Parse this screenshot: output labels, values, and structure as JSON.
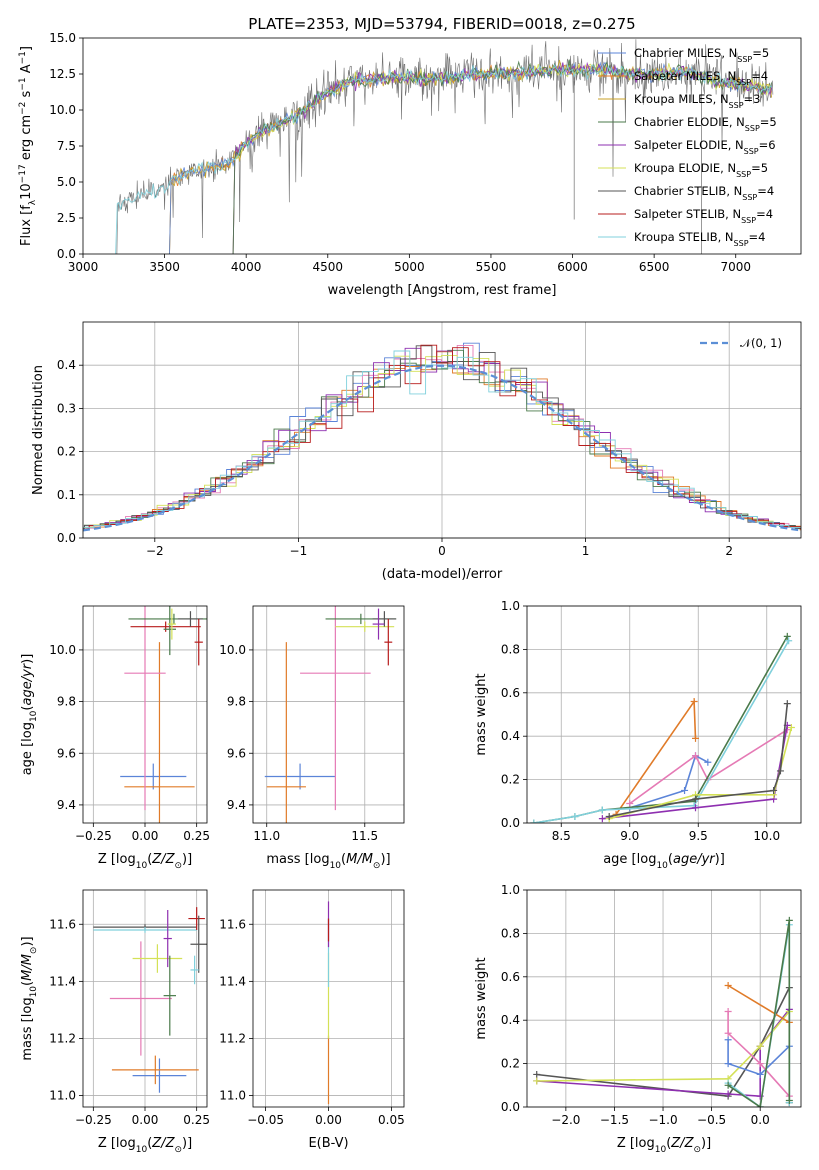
{
  "palette": {
    "Chabrier MILES": "#5b84d8",
    "Salpeter MILES": "#e07b29",
    "Kroupa MILES": "#c9a227",
    "Chabrier ELODIE": "#4a7a4a",
    "Salpeter ELODIE": "#8e2fb0",
    "Kroupa ELODIE": "#d4e157",
    "Chabrier STELIB": "#555555",
    "Salpeter STELIB": "#b71c1c",
    "Kroupa STELIB": "#80d0dc",
    "pink": "#e57ab5",
    "normal": "#5b8fd6"
  },
  "chart_data": [
    {
      "id": "spectrum",
      "type": "line",
      "title": "PLATE=2353, MJD=53794, FIBERID=0018, z=0.275",
      "xlabel": "wavelength [Angstrom, rest frame]",
      "ylabel_parts": [
        "Flux [f",
        "λ",
        "10",
        "−17",
        " erg cm",
        "−2",
        " s",
        "−1",
        " A",
        "−1",
        "]"
      ],
      "xlim": [
        3000,
        7400
      ],
      "ylim": [
        0,
        15
      ],
      "xticks": [
        3000,
        3500,
        4000,
        4500,
        5000,
        5500,
        6000,
        6500,
        7000
      ],
      "yticks": [
        0.0,
        2.5,
        5.0,
        7.5,
        10.0,
        12.5,
        15.0
      ],
      "continuum": [
        [
          3200,
          3.3
        ],
        [
          3300,
          3.9
        ],
        [
          3400,
          4.2
        ],
        [
          3500,
          4.6
        ],
        [
          3600,
          5.5
        ],
        [
          3700,
          5.8
        ],
        [
          3800,
          6.0
        ],
        [
          3900,
          6.3
        ],
        [
          4000,
          7.7
        ],
        [
          4100,
          8.5
        ],
        [
          4200,
          9.0
        ],
        [
          4300,
          9.5
        ],
        [
          4400,
          10.4
        ],
        [
          4500,
          11.2
        ],
        [
          4600,
          11.8
        ],
        [
          4700,
          12.1
        ],
        [
          4800,
          12.2
        ],
        [
          4900,
          12.3
        ],
        [
          5000,
          12.2
        ],
        [
          5100,
          12.1
        ],
        [
          5200,
          12.2
        ],
        [
          5300,
          12.3
        ],
        [
          5400,
          12.5
        ],
        [
          5500,
          12.5
        ],
        [
          5600,
          12.6
        ],
        [
          5700,
          12.6
        ],
        [
          5800,
          12.7
        ],
        [
          5900,
          12.8
        ],
        [
          6000,
          12.7
        ],
        [
          6100,
          12.8
        ],
        [
          6200,
          12.8
        ],
        [
          6300,
          12.6
        ],
        [
          6400,
          12.5
        ],
        [
          6500,
          12.5
        ],
        [
          6600,
          12.6
        ],
        [
          6700,
          12.7
        ],
        [
          6800,
          12.3
        ],
        [
          6900,
          12.0
        ],
        [
          7000,
          11.8
        ],
        [
          7100,
          11.6
        ],
        [
          7200,
          11.5
        ]
      ],
      "legend": [
        {
          "name": "Chabrier MILES, N",
          "sub": "SSP",
          "val": "=5",
          "color": "Chabrier MILES"
        },
        {
          "name": "Salpeter MILES, N",
          "sub": "SSP",
          "val": "=4",
          "color": "Salpeter MILES"
        },
        {
          "name": "Kroupa MILES, N",
          "sub": "SSP",
          "val": "=3",
          "color": "Kroupa MILES"
        },
        {
          "name": "Chabrier ELODIE, N",
          "sub": "SSP",
          "val": "=5",
          "color": "Chabrier ELODIE"
        },
        {
          "name": "Salpeter ELODIE, N",
          "sub": "SSP",
          "val": "=6",
          "color": "Salpeter ELODIE"
        },
        {
          "name": "Kroupa ELODIE, N",
          "sub": "SSP",
          "val": "=5",
          "color": "Kroupa ELODIE"
        },
        {
          "name": "Chabrier STELIB, N",
          "sub": "SSP",
          "val": "=4",
          "color": "Chabrier STELIB"
        },
        {
          "name": "Salpeter STELIB, N",
          "sub": "SSP",
          "val": "=4",
          "color": "Salpeter STELIB"
        },
        {
          "name": "Kroupa STELIB, N",
          "sub": "SSP",
          "val": "=4",
          "color": "Kroupa STELIB"
        }
      ]
    },
    {
      "id": "residuals",
      "type": "bar",
      "xlabel": "(data-model)/error",
      "ylabel": "Normed distribution",
      "xlim": [
        -2.5,
        2.5
      ],
      "ylim": [
        0,
        0.5
      ],
      "xticks": [
        -2,
        -1,
        0,
        1,
        2
      ],
      "xticklabels": [
        "−2",
        "−1",
        "0",
        "1",
        "2"
      ],
      "yticks": [
        0.0,
        0.1,
        0.2,
        0.3,
        0.4
      ],
      "yticklabels": [
        "0.0",
        "0.1",
        "0.2",
        "0.3",
        "0.4"
      ],
      "grid": true,
      "legend_label": "𝒩(0, 1)",
      "legend_position": "top-right"
    },
    {
      "id": "age_vs_Z",
      "type": "scatter",
      "xlabel": "Z [log10(Z/Z⊙)]",
      "ylabel": "age  [log10(age/yr)]",
      "xlim": [
        -0.3,
        0.3
      ],
      "ylim": [
        9.33,
        10.17
      ],
      "xticks": [
        -0.25,
        0.0,
        0.25
      ],
      "xticklabels": [
        "−0.25",
        "0.00",
        "0.25"
      ],
      "yticks": [
        9.4,
        9.6,
        9.8,
        10.0
      ],
      "yticklabels": [
        "9.4",
        "9.6",
        "9.8",
        "10.0"
      ],
      "grid": true,
      "points": [
        {
          "x": 0.04,
          "y": 9.51,
          "xerr": 0.16,
          "yerr": 0.05,
          "c": "Chabrier MILES"
        },
        {
          "x": 0.07,
          "y": 9.47,
          "xerr": 0.17,
          "yerr": 0.56,
          "c": "Salpeter MILES"
        },
        {
          "x": 0.0,
          "y": 9.91,
          "xerr": 0.1,
          "yerr": 0.53,
          "c": "pink"
        },
        {
          "x": 0.14,
          "y": 10.12,
          "xerr": 0.22,
          "yerr": 0.02,
          "c": "Chabrier ELODIE"
        },
        {
          "x": 0.1,
          "y": 10.09,
          "xerr": 0.17,
          "yerr": 0.02,
          "c": "Salpeter STELIB"
        },
        {
          "x": 0.22,
          "y": 10.12,
          "xerr": 0.06,
          "yerr": 0.03,
          "c": "Chabrier STELIB"
        },
        {
          "x": 0.26,
          "y": 10.03,
          "xerr": 0.02,
          "yerr": 0.09,
          "c": "Salpeter STELIB"
        },
        {
          "x": 0.12,
          "y": 10.08,
          "xerr": 0.03,
          "yerr": 0.1,
          "c": "Chabrier ELODIE"
        },
        {
          "x": 0.13,
          "y": 10.1,
          "xerr": 0.02,
          "yerr": 0.06,
          "c": "Kroupa ELODIE"
        }
      ]
    },
    {
      "id": "age_vs_mass",
      "type": "scatter",
      "xlabel": "mass [log10(M/M⊙)]",
      "xlim": [
        10.93,
        11.7
      ],
      "ylim": [
        9.33,
        10.17
      ],
      "xticks": [
        11.0,
        11.5
      ],
      "xticklabels": [
        "11.0",
        "11.5"
      ],
      "yticks": [
        9.4,
        9.6,
        9.8,
        10.0
      ],
      "yticklabels": [
        "9.4",
        "9.6",
        "9.8",
        "10.0"
      ],
      "grid": true,
      "points": [
        {
          "x": 11.17,
          "y": 9.51,
          "xerr": 0.18,
          "yerr": 0.05,
          "c": "Chabrier MILES"
        },
        {
          "x": 11.1,
          "y": 9.47,
          "xerr": 0.1,
          "yerr": 0.56,
          "c": "Salpeter MILES"
        },
        {
          "x": 11.35,
          "y": 9.91,
          "xerr": 0.18,
          "yerr": 0.53,
          "c": "pink"
        },
        {
          "x": 11.48,
          "y": 10.12,
          "xerr": 0.18,
          "yerr": 0.02,
          "c": "Chabrier ELODIE"
        },
        {
          "x": 11.5,
          "y": 10.09,
          "xerr": 0.15,
          "yerr": 0.02,
          "c": "Kroupa ELODIE"
        },
        {
          "x": 11.6,
          "y": 10.12,
          "xerr": 0.06,
          "yerr": 0.03,
          "c": "Chabrier STELIB"
        },
        {
          "x": 11.62,
          "y": 10.03,
          "xerr": 0.02,
          "yerr": 0.09,
          "c": "Salpeter STELIB"
        },
        {
          "x": 11.57,
          "y": 10.1,
          "xerr": 0.03,
          "yerr": 0.06,
          "c": "Salpeter ELODIE"
        }
      ]
    },
    {
      "id": "weight_vs_age",
      "type": "line",
      "xlabel": "age  [log10(age/yr)]",
      "ylabel": "mass weight",
      "xlim": [
        8.25,
        10.25
      ],
      "ylim": [
        0,
        1
      ],
      "xticks": [
        8.5,
        9.0,
        9.5,
        10.0
      ],
      "xticklabels": [
        "8.5",
        "9.0",
        "9.5",
        "10.0"
      ],
      "yticks": [
        0.0,
        0.2,
        0.4,
        0.6,
        0.8,
        1.0
      ],
      "yticklabels": [
        "0.0",
        "0.2",
        "0.4",
        "0.6",
        "0.8",
        "1.0"
      ],
      "grid": true,
      "series": [
        {
          "c": "Salpeter MILES",
          "pts": [
            [
              8.9,
              0.04
            ],
            [
              9.47,
              0.56
            ],
            [
              9.48,
              0.39
            ]
          ]
        },
        {
          "c": "Chabrier MILES",
          "pts": [
            [
              9.0,
              0.07
            ],
            [
              9.4,
              0.15
            ],
            [
              9.48,
              0.31
            ],
            [
              9.57,
              0.28
            ]
          ]
        },
        {
          "c": "pink",
          "pts": [
            [
              9.0,
              0.09
            ],
            [
              9.48,
              0.31
            ],
            [
              9.57,
              0.2
            ],
            [
              10.15,
              0.43
            ]
          ]
        },
        {
          "c": "Chabrier ELODIE",
          "pts": [
            [
              8.3,
              0.0
            ],
            [
              8.6,
              0.03
            ],
            [
              8.8,
              0.06
            ],
            [
              9.47,
              0.1
            ],
            [
              10.15,
              0.86
            ]
          ]
        },
        {
          "c": "Kroupa STELIB",
          "pts": [
            [
              8.3,
              0.0
            ],
            [
              8.6,
              0.03
            ],
            [
              8.8,
              0.06
            ],
            [
              9.47,
              0.08
            ],
            [
              10.16,
              0.84
            ]
          ]
        },
        {
          "c": "Salpeter ELODIE",
          "pts": [
            [
              8.8,
              0.02
            ],
            [
              9.48,
              0.07
            ],
            [
              10.05,
              0.11
            ],
            [
              10.15,
              0.45
            ]
          ]
        },
        {
          "c": "Kroupa ELODIE",
          "pts": [
            [
              8.85,
              0.02
            ],
            [
              9.48,
              0.13
            ],
            [
              10.05,
              0.13
            ],
            [
              10.18,
              0.44
            ]
          ]
        },
        {
          "c": "Chabrier STELIB",
          "pts": [
            [
              8.85,
              0.03
            ],
            [
              9.48,
              0.11
            ],
            [
              10.05,
              0.15
            ],
            [
              10.1,
              0.24
            ],
            [
              10.15,
              0.55
            ]
          ]
        }
      ]
    },
    {
      "id": "mass_vs_Z",
      "type": "scatter",
      "xlabel": "Z [log10(Z/Z⊙)]",
      "ylabel": "mass [log10(M/M⊙)]",
      "xlim": [
        -0.3,
        0.3
      ],
      "ylim": [
        10.96,
        11.72
      ],
      "xticks": [
        -0.25,
        0.0,
        0.25
      ],
      "xticklabels": [
        "−0.25",
        "0.00",
        "0.25"
      ],
      "yticks": [
        11.0,
        11.2,
        11.4,
        11.6
      ],
      "yticklabels": [
        "11.0",
        "11.2",
        "11.4",
        "11.6"
      ],
      "grid": true,
      "points": [
        {
          "x": 0.07,
          "y": 11.07,
          "xerr": 0.13,
          "yerr": 0.06,
          "c": "Chabrier MILES"
        },
        {
          "x": 0.05,
          "y": 11.09,
          "xerr": 0.21,
          "yerr": 0.05,
          "c": "Salpeter MILES"
        },
        {
          "x": -0.02,
          "y": 11.34,
          "xerr": 0.15,
          "yerr": 0.2,
          "c": "pink"
        },
        {
          "x": 0.06,
          "y": 11.48,
          "xerr": 0.12,
          "yerr": 0.05,
          "c": "Kroupa ELODIE"
        },
        {
          "x": 0.0,
          "y": 11.59,
          "xerr": 0.25,
          "yerr": 0.01,
          "c": "Chabrier STELIB"
        },
        {
          "x": 0.0,
          "y": 11.58,
          "xerr": 0.25,
          "yerr": 0.01,
          "c": "Kroupa STELIB"
        },
        {
          "x": 0.25,
          "y": 11.62,
          "xerr": 0.04,
          "yerr": 0.04,
          "c": "Salpeter STELIB"
        },
        {
          "x": 0.26,
          "y": 11.53,
          "xerr": 0.04,
          "yerr": 0.1,
          "c": "Chabrier STELIB"
        },
        {
          "x": 0.12,
          "y": 11.35,
          "xerr": 0.03,
          "yerr": 0.14,
          "c": "Chabrier ELODIE"
        },
        {
          "x": 0.11,
          "y": 11.55,
          "xerr": 0.02,
          "yerr": 0.1,
          "c": "Salpeter ELODIE"
        },
        {
          "x": 0.24,
          "y": 11.44,
          "xerr": 0.02,
          "yerr": 0.05,
          "c": "Kroupa STELIB"
        }
      ]
    },
    {
      "id": "mass_vs_EBV",
      "type": "scatter",
      "xlabel": "E(B-V)",
      "xlim": [
        -0.06,
        0.06
      ],
      "ylim": [
        10.96,
        11.72
      ],
      "xticks": [
        -0.05,
        0.0,
        0.05
      ],
      "xticklabels": [
        "−0.05",
        "0.00",
        "0.05"
      ],
      "yticks": [
        11.0,
        11.2,
        11.4,
        11.6
      ],
      "yticklabels": [
        "11.0",
        "11.2",
        "11.4",
        "11.6"
      ],
      "grid": true,
      "points": [
        {
          "x": 0.0,
          "y": 11.09,
          "xerr": 0,
          "yerr": 0.12,
          "c": "Salpeter MILES"
        },
        {
          "x": 0.0,
          "y": 11.35,
          "xerr": 0,
          "yerr": 0.15,
          "c": "Kroupa ELODIE"
        },
        {
          "x": 0.0,
          "y": 11.5,
          "xerr": 0,
          "yerr": 0.12,
          "c": "Kroupa STELIB"
        },
        {
          "x": 0.0,
          "y": 11.6,
          "xerr": 0,
          "yerr": 0.08,
          "c": "Salpeter ELODIE"
        },
        {
          "x": 0.0,
          "y": 11.58,
          "xerr": 0,
          "yerr": 0.04,
          "c": "Salpeter STELIB"
        }
      ]
    },
    {
      "id": "weight_vs_Z",
      "type": "line",
      "xlabel": "Z [log10(Z/Z⊙)]",
      "ylabel": "mass weight",
      "xlim": [
        -2.4,
        0.42
      ],
      "ylim": [
        0,
        1
      ],
      "xticks": [
        -2.0,
        -1.5,
        -1.0,
        -0.5,
        0.0
      ],
      "xticklabels": [
        "−2.0",
        "−1.5",
        "−1.0",
        "−0.5",
        "0.0"
      ],
      "yticks": [
        0.0,
        0.2,
        0.4,
        0.6,
        0.8,
        1.0
      ],
      "yticklabels": [
        "0.0",
        "0.2",
        "0.4",
        "0.6",
        "0.8",
        "1.0"
      ],
      "grid": true,
      "series": [
        {
          "c": "Chabrier STELIB",
          "pts": [
            [
              -2.3,
              0.15
            ],
            [
              -0.33,
              0.05
            ],
            [
              0.0,
              0.28
            ],
            [
              0.3,
              0.55
            ],
            [
              0.3,
              0.02
            ]
          ]
        },
        {
          "c": "Salpeter ELODIE",
          "pts": [
            [
              -2.3,
              0.12
            ],
            [
              -0.33,
              0.06
            ],
            [
              0.0,
              0.05
            ],
            [
              0.0,
              0.28
            ],
            [
              0.3,
              0.45
            ]
          ]
        },
        {
          "c": "Kroupa ELODIE",
          "pts": [
            [
              -2.3,
              0.12
            ],
            [
              -0.33,
              0.13
            ],
            [
              0.0,
              0.28
            ],
            [
              0.3,
              0.44
            ]
          ]
        },
        {
          "c": "Salpeter MILES",
          "pts": [
            [
              -0.33,
              0.56
            ],
            [
              0.3,
              0.39
            ]
          ]
        },
        {
          "c": "Chabrier MILES",
          "pts": [
            [
              -0.33,
              0.31
            ],
            [
              -0.33,
              0.2
            ],
            [
              0.0,
              0.15
            ],
            [
              0.3,
              0.28
            ]
          ]
        },
        {
          "c": "pink",
          "pts": [
            [
              -0.33,
              0.44
            ],
            [
              -0.33,
              0.34
            ],
            [
              0.0,
              0.2
            ],
            [
              0.3,
              0.05
            ]
          ]
        },
        {
          "c": "Kroupa STELIB",
          "pts": [
            [
              -0.33,
              0.11
            ],
            [
              0.0,
              0.0
            ],
            [
              0.3,
              0.84
            ],
            [
              0.3,
              0.02
            ]
          ]
        },
        {
          "c": "Chabrier ELODIE",
          "pts": [
            [
              -0.33,
              0.1
            ],
            [
              0.0,
              0.0
            ],
            [
              0.3,
              0.86
            ],
            [
              0.3,
              0.03
            ]
          ]
        }
      ]
    }
  ]
}
